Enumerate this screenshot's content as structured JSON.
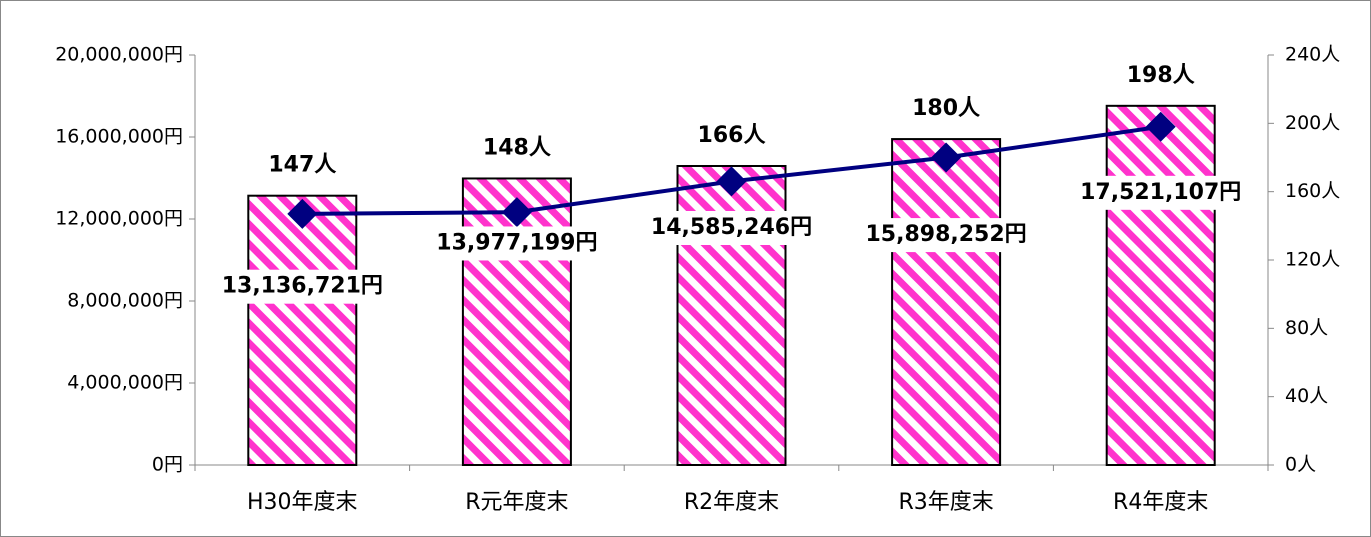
{
  "chart_data": {
    "type": "combo",
    "categories": [
      "H30年度末",
      "R元年度末",
      "R2年度末",
      "R3年度末",
      "R4年度末"
    ],
    "series": [
      {
        "type": "bar",
        "color": "#ff33cc",
        "values": [
          13136721,
          13977199,
          14585246,
          15898252,
          17521107
        ],
        "value_labels": [
          "13,136,721円",
          "13,977,199円",
          "14,585,246円",
          "15,898,252円",
          "17,521,107円"
        ]
      },
      {
        "type": "line",
        "axis": "y2",
        "color": "#000080",
        "values": [
          147,
          148,
          166,
          180,
          198
        ],
        "value_labels": [
          "147人",
          "148人",
          "166人",
          "180人",
          "198人"
        ]
      }
    ],
    "ylim": [
      0,
      20000000
    ],
    "yticks": [
      {
        "value": 0,
        "label": "0円"
      },
      {
        "value": 4000000,
        "label": "4,000,000円"
      },
      {
        "value": 8000000,
        "label": "8,000,000円"
      },
      {
        "value": 12000000,
        "label": "12,000,000円"
      },
      {
        "value": 16000000,
        "label": "16,000,000円"
      },
      {
        "value": 20000000,
        "label": "20,000,000円"
      }
    ],
    "y2lim": [
      0,
      240
    ],
    "y2ticks": [
      {
        "value": 0,
        "label": "0人"
      },
      {
        "value": 40,
        "label": "40人"
      },
      {
        "value": 80,
        "label": "80人"
      },
      {
        "value": 120,
        "label": "120人"
      },
      {
        "value": 160,
        "label": "160人"
      },
      {
        "value": 200,
        "label": "200人"
      },
      {
        "value": 240,
        "label": "240人"
      }
    ]
  }
}
